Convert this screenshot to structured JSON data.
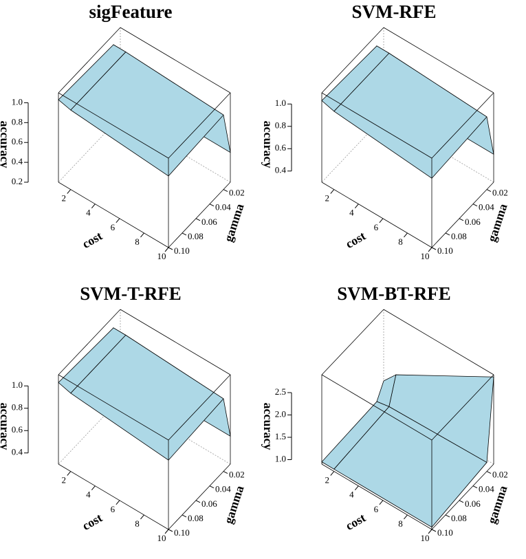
{
  "chart_data": [
    {
      "type": "surface",
      "title": "sigFeature",
      "xlabel": "cost",
      "ylabel": "gamma",
      "zlabel": "accuracy",
      "color": "#add8e6",
      "x": [
        1,
        2,
        10
      ],
      "y": [
        0.01,
        0.02,
        0.1
      ],
      "z": [
        [
          0.6,
          1.0,
          1.03
        ],
        [
          0.5,
          1.0,
          1.0
        ],
        [
          0.5,
          0.95,
          0.92
        ]
      ],
      "xlim": [
        1,
        10
      ],
      "ylim": [
        0.01,
        0.1
      ],
      "zlim": [
        0.2,
        1.1
      ],
      "xticks": [
        2,
        4,
        6,
        8,
        10
      ],
      "yticks": [
        0.02,
        0.04,
        0.06,
        0.08,
        {
          "value": 0.1,
          "label": "0.10"
        }
      ],
      "zticks": [
        0.2,
        0.4,
        0.6,
        0.8,
        {
          "value": 1,
          "label": "1.0"
        }
      ]
    },
    {
      "type": "surface",
      "title": "SVM-RFE",
      "xlabel": "cost",
      "ylabel": "gamma",
      "zlabel": "accuracy",
      "color": "#add8e6",
      "x": [
        1,
        2,
        10
      ],
      "y": [
        0.01,
        0.02,
        0.1
      ],
      "z": [
        [
          0.65,
          1.0,
          1.03
        ],
        [
          0.55,
          1.0,
          1.0
        ],
        [
          0.55,
          0.95,
          0.92
        ]
      ],
      "xlim": [
        1,
        10
      ],
      "ylim": [
        0.01,
        0.1
      ],
      "zlim": [
        0.3,
        1.1
      ],
      "xticks": [
        2,
        4,
        6,
        8,
        10
      ],
      "yticks": [
        0.02,
        0.04,
        0.06,
        0.08,
        {
          "value": 0.1,
          "label": "0.10"
        }
      ],
      "zticks": [
        0.4,
        0.6,
        0.8,
        {
          "value": 1,
          "label": "1.0"
        }
      ]
    },
    {
      "type": "surface",
      "title": "SVM-T-RFE",
      "xlabel": "cost",
      "ylabel": "gamma",
      "zlabel": "accuracy",
      "color": "#add8e6",
      "x": [
        1,
        2,
        10
      ],
      "y": [
        0.01,
        0.02,
        0.1
      ],
      "z": [
        [
          0.65,
          1.0,
          1.03
        ],
        [
          0.55,
          1.0,
          1.0
        ],
        [
          0.55,
          0.95,
          0.92
        ]
      ],
      "xlim": [
        1,
        10
      ],
      "ylim": [
        0.01,
        0.1
      ],
      "zlim": [
        0.3,
        1.1
      ],
      "xticks": [
        2,
        4,
        6,
        8,
        10
      ],
      "yticks": [
        0.02,
        0.04,
        0.06,
        0.08,
        {
          "value": 0.1,
          "label": "0.10"
        }
      ],
      "zticks": [
        0.4,
        0.6,
        0.8,
        {
          "value": 1,
          "label": "1.0"
        }
      ]
    },
    {
      "type": "surface",
      "title": "SVM-BT-RFE",
      "xlabel": "cost",
      "ylabel": "gamma",
      "zlabel": "accuracy",
      "color": "#add8e6",
      "x": [
        1,
        2,
        10
      ],
      "y": [
        0.01,
        0.02,
        0.1
      ],
      "z": [
        [
          1.3,
          1.0,
          0.95
        ],
        [
          1.6,
          1.05,
          0.95
        ],
        [
          2.85,
          1.1,
          0.95
        ]
      ],
      "xlim": [
        1,
        10
      ],
      "ylim": [
        0.01,
        0.1
      ],
      "zlim": [
        0.9,
        2.9
      ],
      "xticks": [
        2,
        4,
        6,
        8,
        10
      ],
      "yticks": [
        0.02,
        0.04,
        0.06,
        0.08,
        {
          "value": 0.1,
          "label": "0.10"
        }
      ],
      "zticks": [
        {
          "value": 1,
          "label": "1.0"
        },
        1.5,
        {
          "value": 2,
          "label": "2.0"
        },
        2.5
      ]
    }
  ]
}
